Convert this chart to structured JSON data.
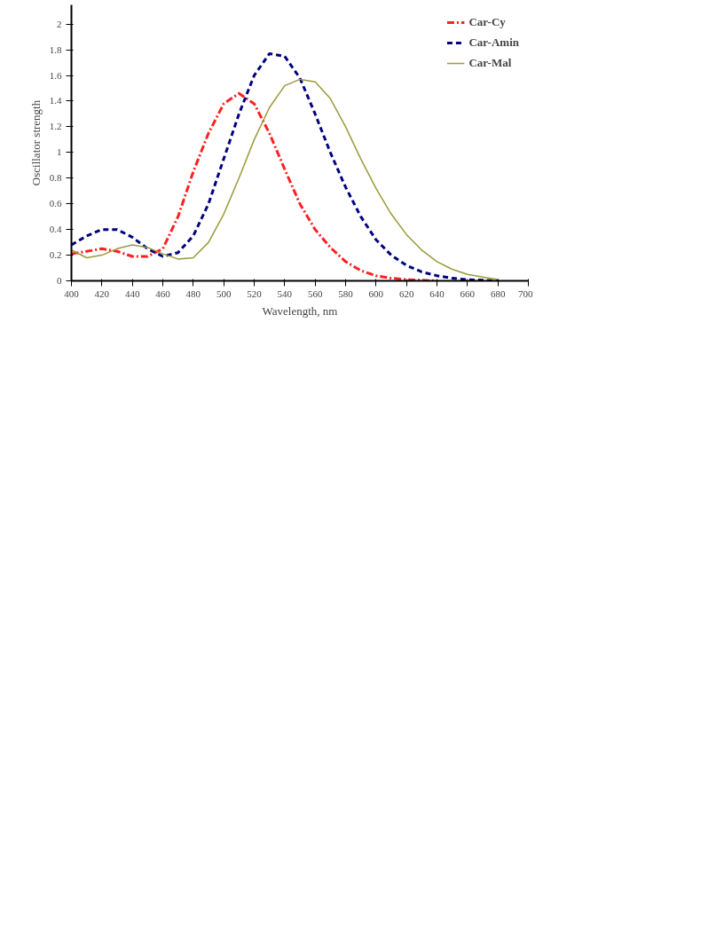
{
  "chart_data": {
    "type": "line",
    "xlabel": "Wavelength, nm",
    "ylabel": "Oscillator strength",
    "x": [
      400,
      410,
      420,
      430,
      440,
      450,
      460,
      470,
      480,
      490,
      500,
      510,
      520,
      530,
      540,
      550,
      560,
      570,
      580,
      590,
      600,
      610,
      620,
      630,
      640,
      650,
      660,
      670,
      680
    ],
    "series": [
      {
        "name": "Car-Cy",
        "color": "#ff2020",
        "line_style": "dashdot",
        "values": [
          0.21,
          0.23,
          0.25,
          0.23,
          0.19,
          0.19,
          0.25,
          0.5,
          0.85,
          1.15,
          1.38,
          1.46,
          1.38,
          1.15,
          0.87,
          0.6,
          0.4,
          0.26,
          0.15,
          0.08,
          0.04,
          0.02,
          0.01,
          0.005,
          0,
          null,
          null,
          null,
          null
        ]
      },
      {
        "name": "Car-Amin",
        "color": "#000080",
        "line_style": "dashed",
        "values": [
          0.28,
          0.35,
          0.4,
          0.4,
          0.34,
          0.25,
          0.19,
          0.22,
          0.35,
          0.6,
          0.95,
          1.3,
          1.6,
          1.77,
          1.75,
          1.58,
          1.3,
          1.0,
          0.73,
          0.5,
          0.32,
          0.2,
          0.12,
          0.07,
          0.04,
          0.02,
          0.01,
          0.005,
          0
        ]
      },
      {
        "name": "Car-Mal",
        "color": "#9a9a3a",
        "line_style": "solid",
        "values": [
          0.24,
          0.18,
          0.2,
          0.25,
          0.28,
          0.26,
          0.21,
          0.17,
          0.18,
          0.3,
          0.52,
          0.8,
          1.1,
          1.35,
          1.52,
          1.57,
          1.55,
          1.42,
          1.2,
          0.95,
          0.72,
          0.52,
          0.36,
          0.24,
          0.15,
          0.09,
          0.05,
          0.03,
          0.01
        ]
      }
    ],
    "xlim": [
      400,
      700
    ],
    "xticks": [
      400,
      420,
      440,
      460,
      480,
      500,
      520,
      540,
      560,
      580,
      600,
      620,
      640,
      660,
      680,
      700
    ],
    "ylim": [
      0,
      2.15
    ],
    "yticks": [
      0,
      0.2,
      0.4,
      0.6,
      0.8,
      1,
      1.2,
      1.4,
      1.6,
      1.8,
      2
    ],
    "grid": false,
    "legend": "top right",
    "marker": "none"
  }
}
